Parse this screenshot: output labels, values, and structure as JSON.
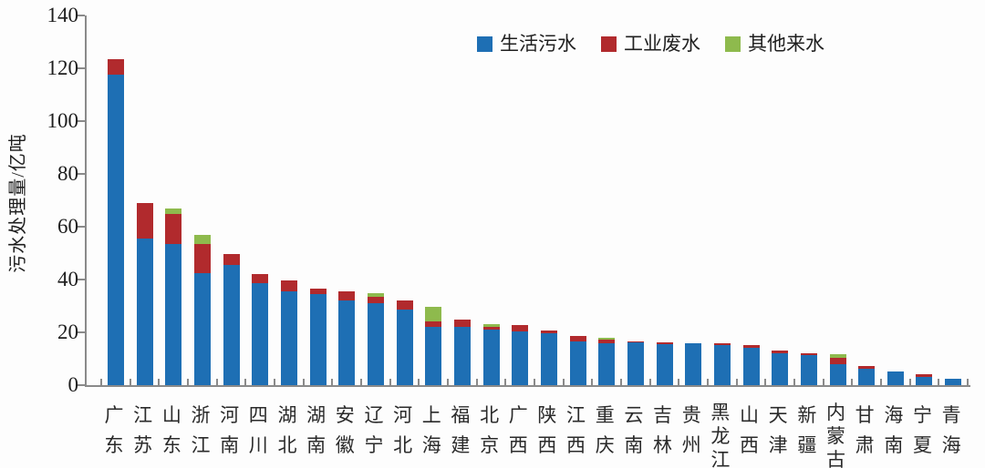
{
  "chart_data": {
    "type": "bar",
    "stacked": true,
    "title": "",
    "ylabel": "污水处理量/亿吨",
    "xlabel": "",
    "ylim": [
      0,
      140
    ],
    "ytick_step": 20,
    "grid": false,
    "legend_position": "top-center",
    "categories": [
      "广东",
      "江苏",
      "山东",
      "浙江",
      "河南",
      "四川",
      "湖北",
      "湖南",
      "安徽",
      "辽宁",
      "河北",
      "上海",
      "福建",
      "北京",
      "广西",
      "陕西",
      "江西",
      "重庆",
      "云南",
      "吉林",
      "贵州",
      "黑龙江",
      "山西",
      "天津",
      "新疆",
      "内蒙古",
      "甘肃",
      "海南",
      "宁夏",
      "青海"
    ],
    "series": [
      {
        "name": "生活污水",
        "color": "#1e6fb4",
        "values": [
          117.5,
          55.5,
          53.5,
          42.5,
          45.5,
          38.5,
          35.5,
          34.5,
          32,
          31,
          28.5,
          22,
          22,
          21,
          20.3,
          19.5,
          16.5,
          16,
          16.3,
          15.6,
          15.7,
          15.3,
          14.2,
          12.2,
          11.3,
          8,
          6.3,
          5.2,
          3,
          2.3
        ]
      },
      {
        "name": "工业废水",
        "color": "#b12a2d",
        "values": [
          6,
          13.5,
          11.5,
          11,
          4,
          3.5,
          4,
          2,
          3.5,
          2.5,
          3.5,
          2.3,
          3,
          1.1,
          2.3,
          1.3,
          2,
          1.4,
          0.4,
          0.6,
          0.2,
          0.4,
          1.1,
          0.8,
          0.9,
          2.2,
          0.9,
          0,
          1.3,
          0
        ]
      },
      {
        "name": "其他来水",
        "color": "#8eba4d",
        "values": [
          0,
          0,
          2,
          3.5,
          0,
          0,
          0,
          0,
          0,
          1.2,
          0,
          5.5,
          0,
          1.1,
          0,
          0,
          0,
          0.4,
          0,
          0,
          0,
          0,
          0,
          0,
          0,
          1.4,
          0,
          0,
          0,
          0
        ]
      }
    ]
  }
}
